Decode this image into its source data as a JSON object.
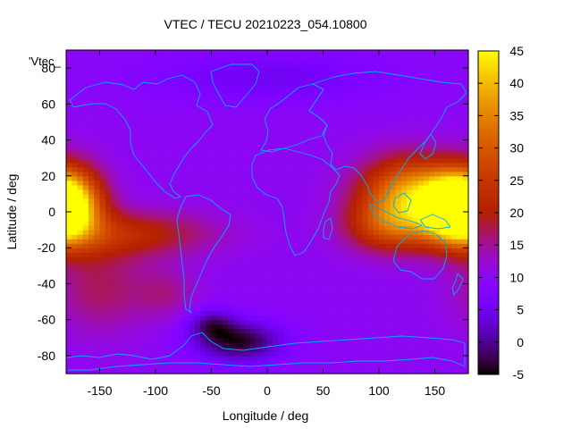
{
  "chart_data": {
    "type": "heatmap",
    "title": "VTEC / TECU 20210223_054.10800",
    "xlabel": "Longitude / deg",
    "ylabel": "Latitude / deg",
    "key_label": "'Vtec_",
    "xlim": [
      -180,
      180
    ],
    "ylim": [
      -90,
      90
    ],
    "x_ticks": [
      -150,
      -100,
      -50,
      0,
      50,
      100,
      150
    ],
    "y_ticks": [
      -80,
      -60,
      -40,
      -20,
      0,
      20,
      40,
      60,
      80
    ],
    "color_range": [
      -5,
      45
    ],
    "colorbar_ticks": [
      -5,
      0,
      5,
      10,
      15,
      20,
      25,
      30,
      35,
      40,
      45
    ],
    "palette": "gnuplot-rgbformulae-7-5-15",
    "coastline_color": "#00aaff",
    "grid": false,
    "colorbar_position": "right",
    "field_features": [
      {
        "lon": 130,
        "lat": 10,
        "sigma_lon": 32,
        "sigma_lat": 14,
        "value": 38
      },
      {
        "lon": 165,
        "lat": 2,
        "sigma_lon": 18,
        "sigma_lat": 12,
        "value": 40
      },
      {
        "lon": 110,
        "lat": -8,
        "sigma_lon": 28,
        "sigma_lat": 10,
        "value": 24
      },
      {
        "lon": -175,
        "lat": 4,
        "sigma_lon": 20,
        "sigma_lat": 14,
        "value": 40
      },
      {
        "lon": -130,
        "lat": -12,
        "sigma_lon": 55,
        "sigma_lat": 9,
        "value": 22
      },
      {
        "lon": -150,
        "lat": -42,
        "sigma_lon": 30,
        "sigma_lat": 18,
        "value": 17
      },
      {
        "lon": -90,
        "lat": -45,
        "sigma_lon": 20,
        "sigma_lat": 10,
        "value": 15
      },
      {
        "lon": -25,
        "lat": -72,
        "sigma_lon": 28,
        "sigma_lat": 8,
        "value": -4
      },
      {
        "lon": -50,
        "lat": -62,
        "sigma_lon": 15,
        "sigma_lat": 6,
        "value": 1
      },
      {
        "lon": 0,
        "lat": 75,
        "sigma_lon": 80,
        "sigma_lat": 10,
        "value": 5
      }
    ],
    "field_background": 10
  }
}
